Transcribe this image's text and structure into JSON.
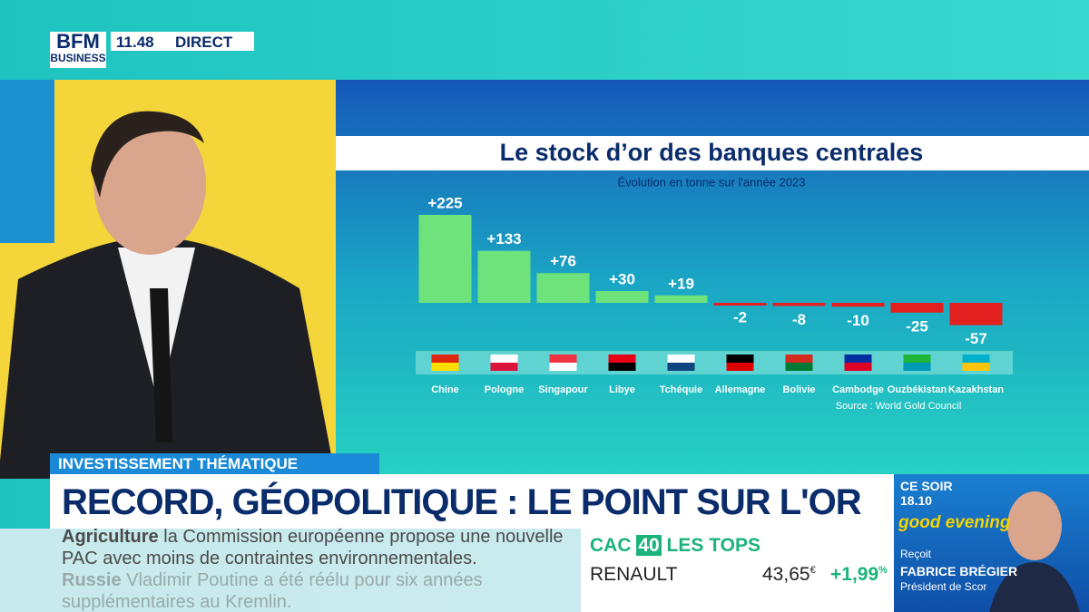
{
  "chart_data": {
    "type": "bar",
    "title": "Le stock d’or des banques centrales",
    "subtitle": "Évolution en tonne sur l'année 2023",
    "categories": [
      "Chine",
      "Pologne",
      "Singapour",
      "Libye",
      "Tchéquie",
      "Allemagne",
      "Bolivie",
      "Cambodge",
      "Ouzbékistan",
      "Kazakhstan"
    ],
    "values": [
      225,
      133,
      76,
      30,
      19,
      -2,
      -8,
      -10,
      -25,
      -57
    ],
    "value_labels": [
      "+225",
      "+133",
      "+76",
      "+30",
      "+19",
      "-2",
      "-8",
      "-10",
      "-25",
      "-57"
    ],
    "positive_color": "#6ee27b",
    "negative_color": "#e3201f",
    "source": "Source : World Gold Council"
  },
  "header": {
    "logo": "BFM",
    "logo_sub": "BUSINESS",
    "time": "11.48",
    "live": "DIRECT"
  },
  "banner": {
    "tag": "INVESTISSEMENT THÉMATIQUE",
    "headline": "RECORD, GÉOPOLITIQUE : LE POINT SUR L'OR"
  },
  "ticker": [
    {
      "topic": "Agriculture",
      "text": "la Commission européenne propose une nouvelle PAC avec moins de contraintes environnementales."
    },
    {
      "topic": "Russie",
      "text": "Vladimir Poutine a été réélu pour six années supplémentaires au Kremlin."
    }
  ],
  "market": {
    "index": "CAC",
    "index_num": "40",
    "heading": "LES TOPS",
    "stock": "RENAULT",
    "price": "43,65",
    "currency": "€",
    "change": "+1,99",
    "change_unit": "%"
  },
  "promo": {
    "when": "CE SOIR",
    "time": "18.10",
    "show": "good evening",
    "receives": "Reçoit",
    "guest": "FABRICE BRÉGIER",
    "guest_role": "Président de Scor"
  }
}
